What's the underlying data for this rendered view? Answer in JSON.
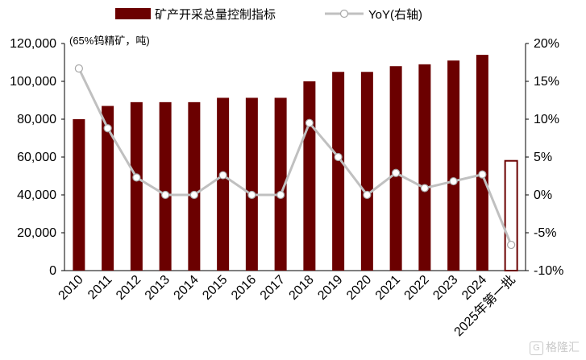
{
  "chart_data": {
    "type": "bar",
    "unit_note": "(65%钨精矿，吨)",
    "categories": [
      "2010",
      "2011",
      "2012",
      "2013",
      "2014",
      "2015",
      "2016",
      "2017",
      "2018",
      "2019",
      "2020",
      "2021",
      "2022",
      "2023",
      "2024",
      "2025年第一批"
    ],
    "series": [
      {
        "name": "矿产开采总量控制指标",
        "type": "bar",
        "axis": "left",
        "color": "#6b0000",
        "values": [
          80000,
          87000,
          89000,
          89000,
          89000,
          91300,
          91300,
          91300,
          100000,
          105000,
          105000,
          108000,
          109000,
          111000,
          114000,
          58000
        ],
        "hollow_last": true
      },
      {
        "name": "YoY(右轴)",
        "type": "line",
        "axis": "right",
        "color": "#c0c0c0",
        "values": [
          16.7,
          8.8,
          2.3,
          0,
          0,
          2.6,
          0,
          0,
          9.5,
          5.0,
          0,
          2.9,
          0.9,
          1.8,
          2.7,
          -6.6
        ]
      }
    ],
    "y_left": {
      "min": 0,
      "max": 120000,
      "ticks": [
        "0",
        "20,000",
        "40,000",
        "60,000",
        "80,000",
        "100,000",
        "120,000"
      ]
    },
    "y_right": {
      "min": -10,
      "max": 20,
      "ticks": [
        "-10%",
        "-5%",
        "0%",
        "5%",
        "10%",
        "15%",
        "20%"
      ]
    },
    "legend_position": "top",
    "grid": false
  },
  "watermark": {
    "mark": "G",
    "text": "格隆汇"
  }
}
